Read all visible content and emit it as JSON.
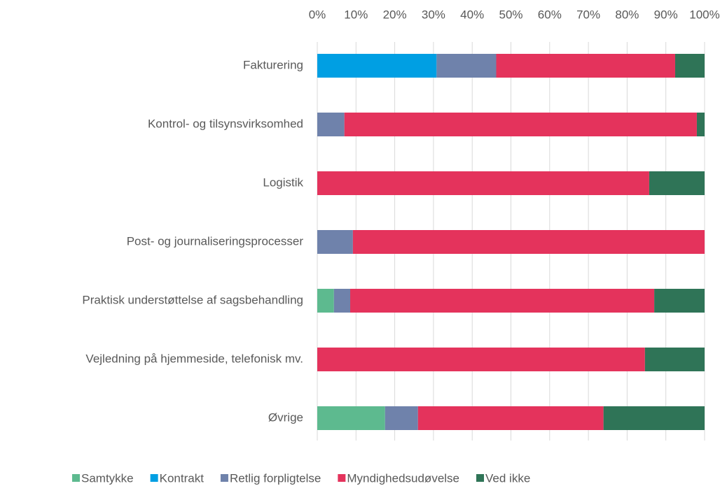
{
  "chart_data": {
    "type": "stacked-bar-horizontal",
    "categories": [
      "Fakturering",
      "Kontrol- og tilsynsvirksomhed",
      "Logistik",
      "Post- og journaliseringsprocesser",
      "Praktisk understøttelse af sagsbehandling",
      "Vejledning på hjemmeside, telefonisk mv.",
      "Øvrige"
    ],
    "series": [
      {
        "name": "Samtykke",
        "color": "#5dba8f",
        "values": [
          0,
          0,
          0,
          0,
          4.3,
          0,
          17.5
        ]
      },
      {
        "name": "Kontrakt",
        "color": "#009fe3",
        "values": [
          30.8,
          0,
          0,
          0,
          0,
          0,
          0
        ]
      },
      {
        "name": "Retlig forpligtelse",
        "color": "#6f82ab",
        "values": [
          15.4,
          7,
          0,
          9.2,
          4.2,
          0,
          8.5
        ]
      },
      {
        "name": "Myndighedsudøvelse",
        "color": "#e4335c",
        "values": [
          46.2,
          91,
          85.7,
          90.8,
          78.5,
          84.6,
          47.9
        ]
      },
      {
        "name": "Ved ikke",
        "color": "#2f7457",
        "values": [
          7.6,
          2,
          14.3,
          0,
          13,
          15.4,
          26.1
        ]
      }
    ],
    "xlim": [
      0,
      100
    ],
    "xticks": [
      {
        "value": 0,
        "label": "0%"
      },
      {
        "value": 10,
        "label": "10%"
      },
      {
        "value": 20,
        "label": "20%"
      },
      {
        "value": 30,
        "label": "30%"
      },
      {
        "value": 40,
        "label": "40%"
      },
      {
        "value": 50,
        "label": "50%"
      },
      {
        "value": 60,
        "label": "60%"
      },
      {
        "value": 70,
        "label": "70%"
      },
      {
        "value": 80,
        "label": "80%"
      },
      {
        "value": 90,
        "label": "90%"
      },
      {
        "value": 100,
        "label": "100%"
      }
    ],
    "grid": true,
    "legend": "bottom"
  }
}
